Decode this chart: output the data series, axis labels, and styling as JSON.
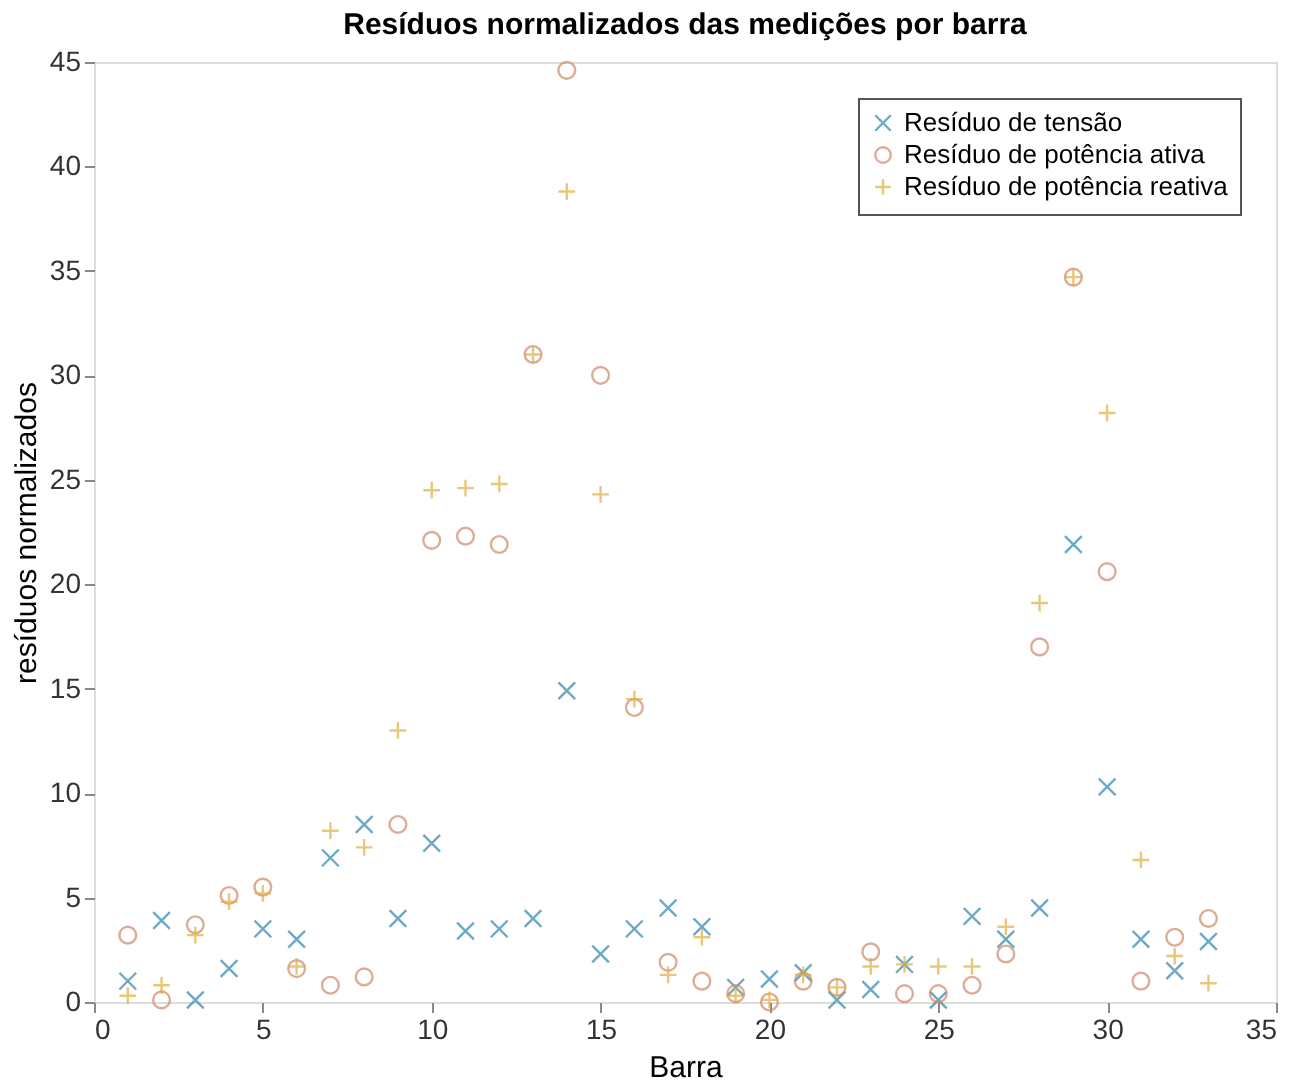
{
  "chart_data": {
    "type": "scatter",
    "title": "Resíduos normalizados das medições por barra",
    "xlabel": "Barra",
    "ylabel": "resíduos normalizados",
    "x": [
      1,
      2,
      3,
      4,
      5,
      6,
      7,
      8,
      9,
      10,
      11,
      12,
      13,
      14,
      15,
      16,
      17,
      18,
      19,
      20,
      21,
      22,
      23,
      24,
      25,
      26,
      27,
      28,
      29,
      30,
      31,
      32,
      33
    ],
    "series": [
      {
        "name": "Resíduo de tensão",
        "color": "#2e86b0",
        "marker": "cross",
        "values": [
          1.0,
          3.9,
          0.1,
          1.6,
          3.5,
          3.0,
          6.9,
          8.5,
          4.0,
          7.6,
          3.4,
          3.5,
          4.0,
          14.9,
          2.3,
          3.5,
          4.5,
          3.6,
          0.7,
          1.1,
          1.4,
          0.1,
          0.6,
          1.8,
          0.1,
          4.1,
          3.0,
          4.5,
          21.9,
          10.3,
          3.0,
          1.5,
          2.9
        ]
      },
      {
        "name": "Resíduo de potência ativa",
        "color": "#d08a6a",
        "marker": "circle",
        "values": [
          3.2,
          0.1,
          3.7,
          5.1,
          5.5,
          1.6,
          0.8,
          1.2,
          8.5,
          22.1,
          22.3,
          21.9,
          31.0,
          44.6,
          30.0,
          14.1,
          1.9,
          1.0,
          0.4,
          0.0,
          1.0,
          0.7,
          2.4,
          0.4,
          0.4,
          0.8,
          2.3,
          17.0,
          34.7,
          20.6,
          1.0,
          3.1,
          4.0
        ]
      },
      {
        "name": "Resíduo de potência reativa",
        "color": "#e0b040",
        "marker": "plus",
        "values": [
          0.3,
          0.8,
          3.2,
          4.8,
          5.2,
          1.7,
          8.2,
          7.4,
          13.0,
          24.5,
          24.6,
          24.8,
          31.0,
          38.8,
          24.3,
          14.5,
          1.3,
          3.1,
          0.3,
          0.1,
          1.3,
          0.7,
          1.7,
          1.8,
          1.7,
          1.7,
          3.6,
          19.1,
          34.7,
          28.2,
          6.8,
          2.2,
          0.9
        ]
      }
    ],
    "xlim": [
      0,
      35
    ],
    "ylim": [
      0,
      45
    ],
    "xticks": [
      0,
      5,
      10,
      15,
      20,
      25,
      30,
      35
    ],
    "yticks": [
      0,
      5,
      10,
      15,
      20,
      25,
      30,
      35,
      40,
      45
    ],
    "grid": false,
    "legend": "top right"
  }
}
